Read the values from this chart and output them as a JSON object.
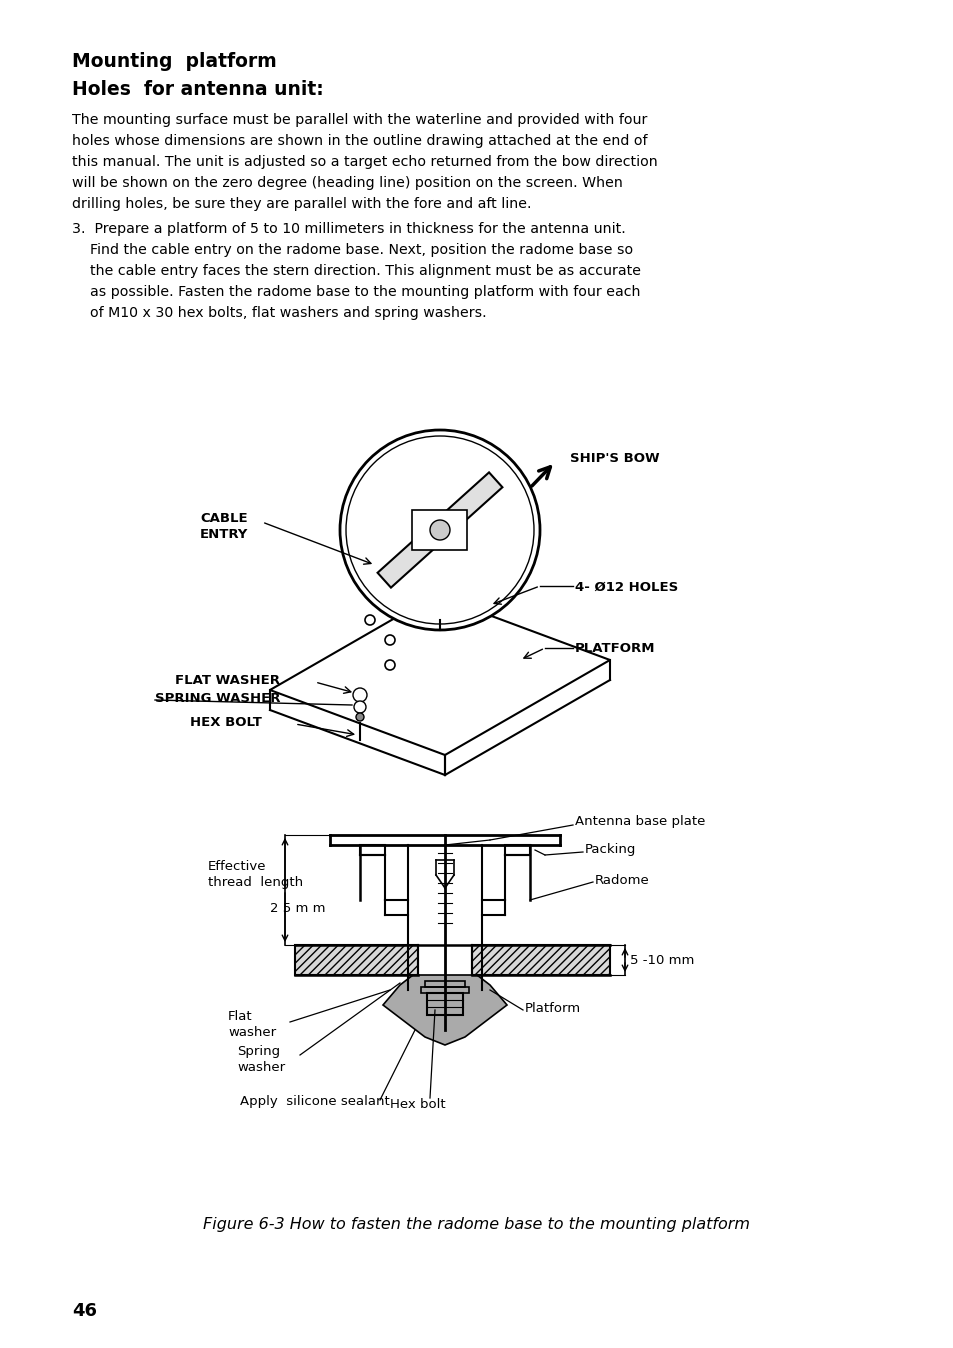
{
  "bg_color": "#ffffff",
  "title1": "Mounting  platform",
  "title2": "Holes  for antenna unit:",
  "body_text": [
    "The mounting surface must be parallel with the waterline and provided with four",
    "holes whose dimensions are shown in the outline drawing attached at the end of",
    "this manual. The unit is adjusted so a target echo returned from the bow direction",
    "will be shown on the zero degree (heading line) position on the screen. When",
    "drilling holes, be sure they are parallel with the fore and aft line."
  ],
  "item3_line1": "3.  Prepare a platform of 5 to 10 millimeters in thickness for the antenna unit.",
  "item3_rest": [
    "Find the cable entry on the radome base. Next, position the radome base so",
    "the cable entry faces the stern direction. This alignment must be as accurate",
    "as possible. Fasten the radome base to the mounting platform with four each",
    "of M10 x 30 hex bolts, flat washers and spring washers."
  ],
  "figure_caption": "Figure 6-3 How to fasten the radome base to the mounting platform",
  "page_number": "46"
}
